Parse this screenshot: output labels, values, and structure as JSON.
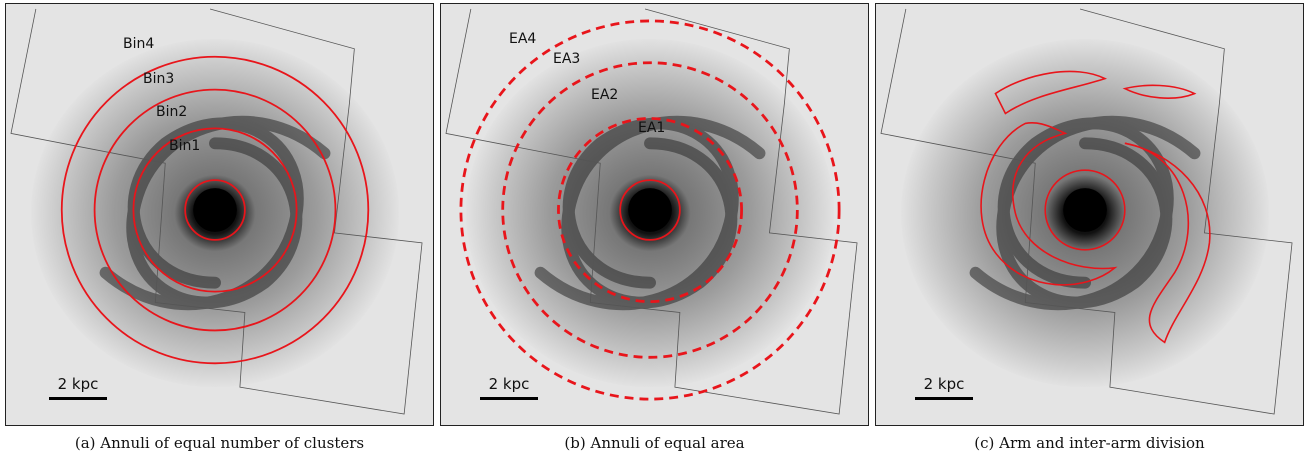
{
  "panels": [
    {
      "caption": "(a) Annuli of equal number of clusters",
      "scale_label": "2 kpc",
      "ring_labels": [
        "Bin4",
        "Bin3",
        "Bin2",
        "Bin1"
      ],
      "ring_style": "solid",
      "ring_color": "#e8151b"
    },
    {
      "caption": "(b) Annuli of equal area",
      "scale_label": "2 kpc",
      "ring_labels": [
        "EA4",
        "EA3",
        "EA2",
        "EA1"
      ],
      "ring_style": "dashed",
      "ring_color": "#e8151b"
    },
    {
      "caption": "(c) Arm and inter-arm division",
      "scale_label": "2 kpc",
      "ring_labels": [],
      "ring_style": "contours",
      "ring_color": "#e8151b"
    }
  ]
}
